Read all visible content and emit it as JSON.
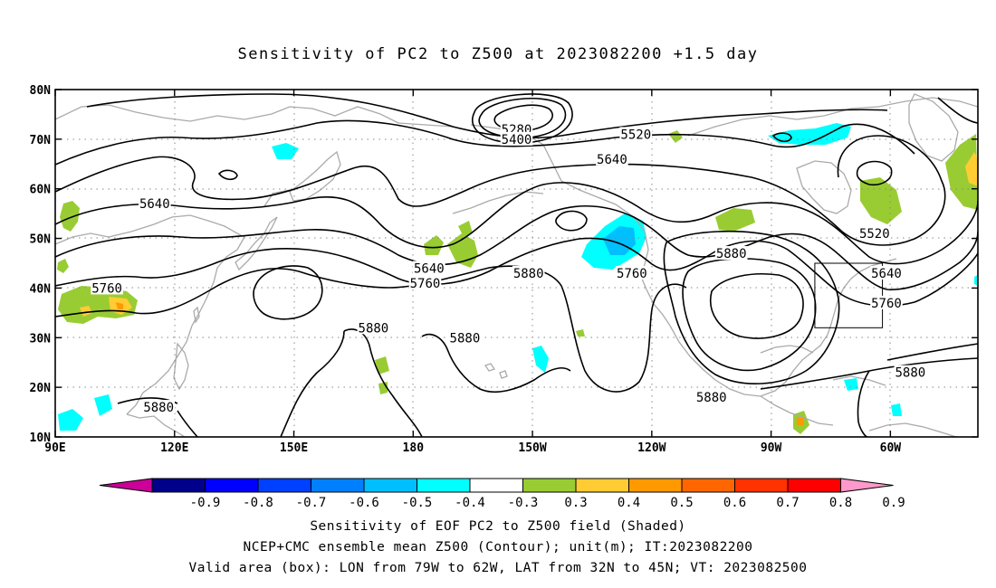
{
  "title": "Sensitivity of PC2 to Z500 at 2023082200 +1.5 day",
  "captions": {
    "line1": "Sensitivity of EOF PC2 to Z500 field (Shaded)",
    "line2": "NCEP+CMC ensemble mean Z500 (Contour); unit(m); IT:2023082200",
    "line3": "Valid area (box): LON from 79W to 62W, LAT from 32N to 45N; VT: 2023082500"
  },
  "axes": {
    "x_ticks": [
      {
        "lon": 90,
        "label": "90E"
      },
      {
        "lon": 120,
        "label": "120E"
      },
      {
        "lon": 150,
        "label": "150E"
      },
      {
        "lon": 180,
        "label": "180"
      },
      {
        "lon": 210,
        "label": "150W"
      },
      {
        "lon": 240,
        "label": "120W"
      },
      {
        "lon": 270,
        "label": "90W"
      },
      {
        "lon": 300,
        "label": "60W"
      }
    ],
    "y_ticks": [
      {
        "lat": 80,
        "label": "80N"
      },
      {
        "lat": 70,
        "label": "70N"
      },
      {
        "lat": 60,
        "label": "60N"
      },
      {
        "lat": 50,
        "label": "50N"
      },
      {
        "lat": 40,
        "label": "40N"
      },
      {
        "lat": 30,
        "label": "30N"
      },
      {
        "lat": 20,
        "label": "20N"
      },
      {
        "lat": 10,
        "label": "10N"
      }
    ],
    "lon_range": [
      90,
      322
    ],
    "lat_range": [
      10,
      80
    ]
  },
  "valid_box": {
    "lon_west": 281,
    "lon_east": 298,
    "lat_south": 32,
    "lat_north": 45
  },
  "colorbar": {
    "labels": [
      "-0.9",
      "-0.8",
      "-0.7",
      "-0.6",
      "-0.5",
      "-0.4",
      "-0.3",
      "0.3",
      "0.4",
      "0.5",
      "0.6",
      "0.7",
      "0.8",
      "0.9"
    ],
    "colors": [
      "#00008b",
      "#0000ff",
      "#0040ff",
      "#0080ff",
      "#00bfff",
      "#00ffff",
      "#ffffff",
      "#99cc33",
      "#ffcc33",
      "#ff9900",
      "#ff6600",
      "#ff3300",
      "#ff0000"
    ],
    "low_end_color": "#cc0099",
    "high_end_color": "#ff99cc"
  },
  "chart_data": {
    "type": "contour",
    "field_contour": "Z500 ensemble mean (m)",
    "field_shaded": "Sensitivity of EOF PC2 to Z500",
    "contour_labels": [
      {
        "value": "5280",
        "lon": 206,
        "lat": 72
      },
      {
        "value": "5400",
        "lon": 206,
        "lat": 70
      },
      {
        "value": "5520",
        "lon": 236,
        "lat": 71
      },
      {
        "value": "5520",
        "lon": 296,
        "lat": 51
      },
      {
        "value": "5640",
        "lon": 115,
        "lat": 57
      },
      {
        "value": "5640",
        "lon": 230,
        "lat": 66
      },
      {
        "value": "5640",
        "lon": 184,
        "lat": 44
      },
      {
        "value": "5640",
        "lon": 299,
        "lat": 43
      },
      {
        "value": "5760",
        "lon": 103,
        "lat": 40
      },
      {
        "value": "5760",
        "lon": 183,
        "lat": 41
      },
      {
        "value": "5760",
        "lon": 235,
        "lat": 43
      },
      {
        "value": "5760",
        "lon": 299,
        "lat": 37
      },
      {
        "value": "5880",
        "lon": 170,
        "lat": 32
      },
      {
        "value": "5880",
        "lon": 193,
        "lat": 30
      },
      {
        "value": "5880",
        "lon": 209,
        "lat": 43
      },
      {
        "value": "5880",
        "lon": 260,
        "lat": 47
      },
      {
        "value": "5880",
        "lon": 116,
        "lat": 16
      },
      {
        "value": "5880",
        "lon": 255,
        "lat": 18
      },
      {
        "value": "5880",
        "lon": 305,
        "lat": 23
      }
    ],
    "sensitivity_regions": [
      {
        "sign": "positive",
        "level": "0.3",
        "lon_center": 96,
        "lat_center": 49
      },
      {
        "sign": "positive",
        "level": "0.5",
        "lon_center": 102,
        "lat_center": 37
      },
      {
        "sign": "positive",
        "level": "0.3",
        "lon_center": 187,
        "lat_center": 48
      },
      {
        "sign": "negative",
        "level": "-0.4",
        "lon_center": 225,
        "lat_center": 49
      },
      {
        "sign": "negative",
        "level": "-0.4",
        "lon_center": 140,
        "lat_center": 67
      },
      {
        "sign": "negative",
        "level": "-0.4",
        "lon_center": 277,
        "lat_center": 69
      },
      {
        "sign": "positive",
        "level": "0.3",
        "lon_center": 297,
        "lat_center": 58
      },
      {
        "sign": "positive",
        "level": "0.5",
        "lon_center": 318,
        "lat_center": 62
      },
      {
        "sign": "positive",
        "level": "0.3",
        "lon_center": 263,
        "lat_center": 51
      },
      {
        "sign": "negative",
        "level": "-0.4",
        "lon_center": 95,
        "lat_center": 14
      },
      {
        "sign": "positive",
        "level": "0.5",
        "lon_center": 283,
        "lat_center": 13
      }
    ]
  }
}
